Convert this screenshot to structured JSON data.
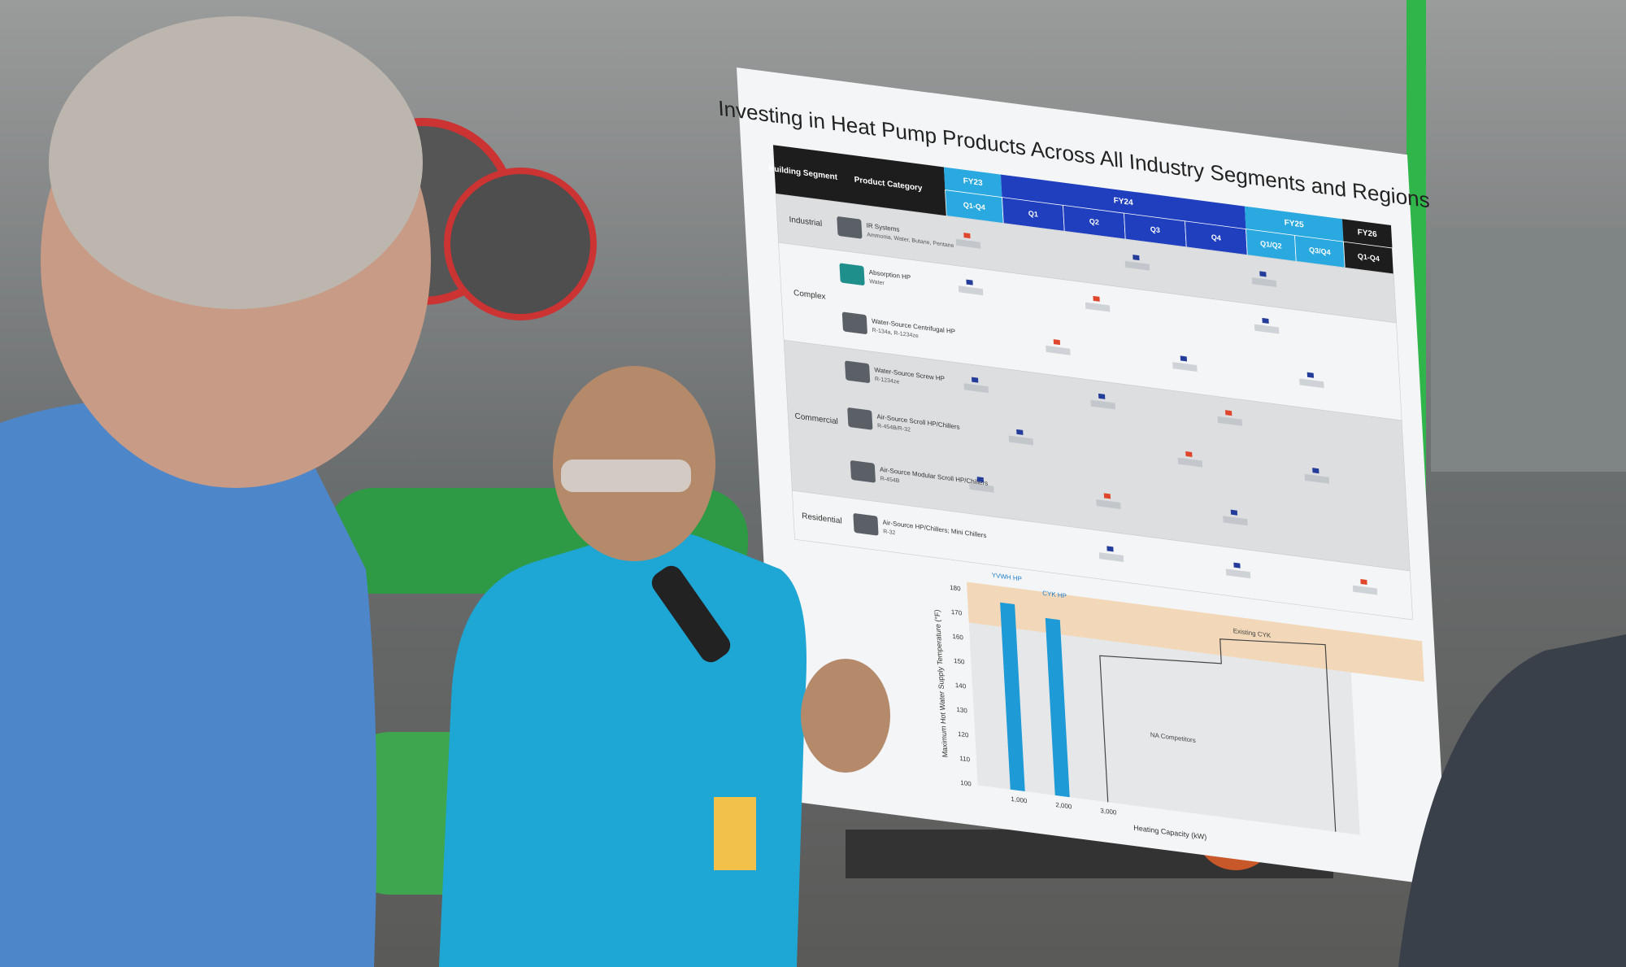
{
  "poster": {
    "title": "Investing in Heat Pump Products Across All Industry Segments and Regions",
    "table": {
      "header": {
        "segment": "Building Segment",
        "category": "Product Category",
        "years": [
          "FY23",
          "FY24",
          "FY25",
          "FY26"
        ],
        "periods": [
          "Q1-Q4",
          "Q1",
          "Q2",
          "Q3",
          "Q4",
          "Q1/Q2",
          "Q3/Q4",
          "Q1-Q4"
        ]
      },
      "segments": [
        {
          "name": "Industrial",
          "rows": [
            {
              "product": "IR Systems",
              "refrigerant": "Ammonia, Water, Butane, Pentane"
            }
          ]
        },
        {
          "name": "Complex",
          "rows": [
            {
              "product": "Absorption HP",
              "refrigerant": "Water"
            },
            {
              "product": "Water-Source Centrifugal HP",
              "refrigerant": "R-134a, R-1234ze"
            }
          ]
        },
        {
          "name": "Commercial",
          "rows": [
            {
              "product": "Water-Source Screw HP",
              "refrigerant": "R-1234ze"
            },
            {
              "product": "Air-Source Scroll HP/Chillers",
              "refrigerant": "R-454B/R-32"
            },
            {
              "product": "Air-Source Modular Scroll HP/Chillers",
              "refrigerant": "R-454B"
            }
          ]
        },
        {
          "name": "Residential",
          "rows": [
            {
              "product": "Air-Source HP/Chillers; Mini Chillers",
              "refrigerant": "R-32"
            }
          ]
        }
      ]
    },
    "chart": {
      "y_label": "Maximum Hot Water Supply Temperature (°F)",
      "x_label": "Heating Capacity (kW)",
      "yticks": [
        180,
        170,
        160,
        150,
        140,
        130,
        120,
        110,
        100
      ],
      "xticks": [
        "1,000",
        "2,000",
        "3,000"
      ],
      "annotations": [
        "YVWH HP",
        "CYK HP",
        "Existing CYK",
        "NA Competitors"
      ]
    }
  }
}
